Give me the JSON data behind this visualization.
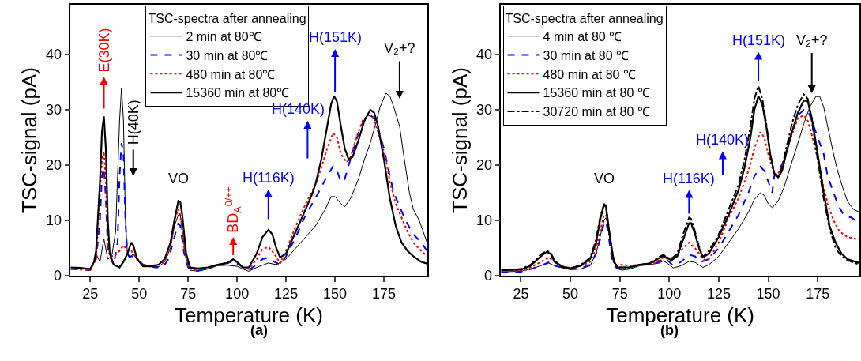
{
  "chart_data": [
    {
      "type": "line",
      "xlabel": "Temperature (K)",
      "ylabel": "TSC-signal (pA)",
      "legend_title": "TSC-spectra after annealing",
      "legend": "top",
      "xlim": [
        15,
        197
      ],
      "ylim": [
        0,
        49
      ],
      "xticks": [
        25,
        50,
        75,
        100,
        125,
        150,
        175
      ],
      "yticks": [
        0,
        10,
        20,
        30,
        40
      ],
      "series": [
        {
          "name": "2 min at 80℃",
          "color": "#000000",
          "line_style": "solid",
          "x": [
            15,
            20,
            25,
            27,
            28,
            30,
            32,
            34,
            36,
            38,
            40,
            41,
            42,
            43,
            44,
            45,
            46,
            47,
            49,
            52,
            55,
            60,
            63,
            66,
            68,
            70,
            71,
            72,
            74,
            76,
            80,
            85,
            90,
            95,
            100,
            103,
            106,
            110,
            116,
            120,
            125,
            130,
            135,
            140,
            145,
            148,
            150,
            153,
            155,
            158,
            162,
            165,
            168,
            170,
            173,
            176,
            178,
            180,
            183,
            185,
            188,
            190,
            193,
            195,
            197
          ],
          "values": [
            1.5,
            1.3,
            1.2,
            2.5,
            4,
            2.5,
            6.7,
            3,
            3.5,
            8,
            28,
            34,
            28,
            10,
            4,
            3.2,
            3.5,
            4,
            2.8,
            2,
            1.8,
            1.6,
            2.5,
            5,
            9,
            11,
            11,
            8,
            3,
            1,
            0.8,
            1.2,
            1.8,
            1.9,
            1.7,
            1.2,
            0.8,
            1.5,
            2.3,
            2,
            3,
            5,
            7,
            9,
            12,
            14.3,
            14.3,
            13,
            12.5,
            14,
            17.5,
            21,
            24,
            26.5,
            30.5,
            33,
            32.5,
            30.5,
            27,
            22,
            15,
            12,
            10,
            8,
            6
          ]
        },
        {
          "name": "30 min at 80℃",
          "color": "#0000ff",
          "line_style": "dashed",
          "x": [
            15,
            25,
            28,
            30,
            31,
            32,
            33,
            34,
            35,
            37,
            39,
            40,
            41,
            42,
            43,
            44,
            45,
            47,
            49,
            52,
            55,
            58,
            62,
            65,
            68,
            70,
            71,
            73,
            75,
            78,
            85,
            90,
            95,
            98,
            100,
            103,
            106,
            110,
            113,
            116,
            119,
            122,
            125,
            130,
            135,
            140,
            143,
            146,
            149,
            151,
            153,
            155,
            157,
            160,
            163,
            166,
            168,
            170,
            172,
            175,
            178,
            180,
            183,
            186,
            190,
            194,
            197
          ],
          "values": [
            1.2,
            1,
            3,
            10,
            18,
            19.5,
            14,
            5,
            3.5,
            2,
            6,
            18,
            24,
            22,
            10,
            4,
            3.5,
            3.5,
            3,
            2,
            1.8,
            1.5,
            1.5,
            3,
            7,
            9.5,
            9,
            4,
            1.5,
            0.8,
            1.3,
            2,
            2.3,
            2.6,
            2.2,
            1.5,
            1,
            2,
            3,
            3.3,
            2.5,
            2,
            3.5,
            7,
            11,
            14,
            16,
            18,
            19.8,
            19,
            17,
            17.5,
            20,
            23.5,
            27,
            28.5,
            29,
            28.5,
            26.5,
            23,
            18,
            15,
            12.5,
            10,
            7.5,
            6,
            4.5
          ]
        },
        {
          "name": "480 min at 80℃",
          "color": "#ff0000",
          "line_style": "dotted",
          "x": [
            15,
            25,
            28,
            30,
            31,
            32,
            33,
            34,
            35,
            37,
            40,
            42,
            44,
            46,
            48,
            52,
            56,
            60,
            63,
            66,
            68,
            70,
            71,
            73,
            75,
            78,
            85,
            90,
            95,
            98,
            100,
            103,
            106,
            110,
            113,
            116,
            119,
            122,
            125,
            130,
            135,
            140,
            143,
            146,
            149,
            151,
            153,
            156,
            158,
            161,
            164,
            167,
            169,
            171,
            173,
            176,
            178,
            181,
            184,
            187,
            190,
            194,
            197
          ],
          "values": [
            1.2,
            1,
            3,
            15,
            21,
            22.5,
            17,
            6,
            3.5,
            3.5,
            4.5,
            5.5,
            4.5,
            4.5,
            3.5,
            2,
            1.8,
            2,
            2.5,
            5,
            10,
            12,
            11,
            5,
            1.5,
            1,
            1.4,
            2,
            2.2,
            2.8,
            2.4,
            1.5,
            1.2,
            3,
            4.8,
            5.2,
            4,
            2.2,
            4.5,
            9,
            13,
            16.5,
            19.5,
            23,
            25.8,
            25,
            22,
            20.5,
            21.5,
            25,
            28,
            29,
            28.8,
            27,
            25,
            21,
            17,
            13,
            10.5,
            8,
            6,
            4.5,
            3.5
          ]
        },
        {
          "name": "15360 min at 80℃",
          "color": "#000000",
          "line_style": "solid",
          "x": [
            15,
            20,
            25,
            27,
            28,
            30,
            31,
            32,
            33,
            34,
            35,
            37,
            40,
            42,
            44,
            46,
            47,
            49,
            52,
            56,
            60,
            63,
            66,
            68,
            70,
            71,
            72,
            74,
            76,
            80,
            85,
            90,
            95,
            98,
            100,
            103,
            106,
            110,
            113,
            116,
            118,
            120,
            122,
            125,
            130,
            135,
            138,
            140,
            143,
            146,
            148,
            149.5,
            151,
            153,
            155,
            157,
            159,
            162,
            165,
            168,
            170,
            172,
            175,
            178,
            181,
            184,
            187,
            190,
            194,
            197
          ],
          "values": [
            1.5,
            1.4,
            1.2,
            2.5,
            4.5,
            17,
            26,
            28.8,
            23,
            10,
            4,
            2,
            1.5,
            2.5,
            4,
            6,
            5.5,
            3,
            1.7,
            1.7,
            2,
            3,
            6,
            10,
            13.5,
            13.3,
            11,
            4,
            1.5,
            1.3,
            1.5,
            2,
            2.3,
            3,
            2.5,
            1.5,
            1.5,
            4,
            7,
            8.3,
            7.5,
            5,
            3.3,
            4,
            8,
            12,
            14.5,
            16.5,
            21,
            27,
            31,
            32.5,
            31.5,
            27,
            23,
            21,
            21.5,
            24.5,
            28,
            30,
            29.5,
            27,
            21,
            14,
            9,
            6,
            4.5,
            3.5,
            2.5,
            2.2
          ]
        }
      ],
      "annotations": [
        "E(30K)",
        "H(40K)",
        "VO",
        "BD$_{A}$$^{0/++}$",
        "H(116K)",
        "H(140K)",
        "H(151K)",
        "V₂+?",
        "(a)"
      ]
    },
    {
      "type": "line",
      "xlabel": "Temperature (K)",
      "ylabel": "TSC-signal (pA)",
      "legend_title": "TSC-spectra after annealing",
      "legend": "top left",
      "xlim": [
        15,
        196
      ],
      "ylim": [
        0,
        49
      ],
      "xticks": [
        25,
        50,
        75,
        100,
        125,
        150,
        175
      ],
      "yticks": [
        0,
        10,
        20,
        30,
        40
      ],
      "series": [
        {
          "name": "4 min at 80 ℃",
          "color": "#000000",
          "line_style": "solid",
          "x": [
            15,
            25,
            30,
            35,
            39,
            42,
            45,
            50,
            55,
            60,
            63,
            65,
            67,
            68,
            69,
            71,
            73,
            76,
            80,
            85,
            90,
            95,
            97,
            100,
            102,
            106,
            110,
            113,
            117,
            120,
            125,
            130,
            135,
            140,
            143,
            146,
            148,
            150,
            152,
            155,
            158,
            161,
            165,
            168,
            171,
            174,
            176,
            178,
            180,
            183,
            185,
            188,
            190,
            193,
            196
          ],
          "values": [
            0.7,
            0.8,
            1.2,
            1.8,
            2.3,
            1.8,
            1.5,
            1.1,
            1.2,
            1.8,
            4,
            7,
            10,
            10.5,
            9,
            4,
            1.5,
            1,
            1.2,
            1.8,
            2,
            2.3,
            2.7,
            2,
            1.4,
            1.8,
            2.6,
            2.4,
            1.5,
            2,
            3.5,
            6,
            8.5,
            11.5,
            13.8,
            15,
            14.5,
            13,
            12.3,
            13.5,
            16,
            19.5,
            24,
            27.5,
            30.5,
            32.4,
            32.4,
            30.5,
            27,
            22,
            19,
            15.5,
            13.5,
            12,
            11.5
          ]
        },
        {
          "name": "30 min at 80 ℃",
          "color": "#0000ff",
          "line_style": "dashed",
          "x": [
            15,
            25,
            30,
            35,
            39,
            42,
            46,
            50,
            55,
            60,
            63,
            65,
            67,
            68,
            69,
            71,
            73,
            76,
            80,
            85,
            90,
            95,
            97,
            100,
            102,
            106,
            110,
            113,
            116,
            120,
            125,
            130,
            135,
            140,
            143,
            146,
            148,
            150,
            152,
            153,
            155,
            158,
            161,
            165,
            168,
            170,
            172,
            175,
            178,
            180,
            183,
            185,
            188,
            192,
            196
          ],
          "values": [
            0.6,
            0.7,
            1.2,
            1.8,
            2.4,
            1.8,
            1.5,
            1.2,
            1.3,
            2,
            4,
            6.5,
            9.5,
            9.8,
            8,
            3,
            1.5,
            1,
            1.5,
            2,
            2,
            2.5,
            3.2,
            2.5,
            1.8,
            2.5,
            3.8,
            3.5,
            2.5,
            3,
            5,
            8,
            11,
            15,
            18,
            19.7,
            19,
            17,
            15,
            18,
            18.5,
            21,
            25,
            29,
            30,
            30,
            28,
            25,
            22,
            18,
            15,
            13,
            11,
            10.5,
            9.5
          ]
        },
        {
          "name": "480 min at 80 ℃",
          "color": "#ff0000",
          "line_style": "dotted",
          "x": [
            15,
            25,
            30,
            35,
            39,
            42,
            46,
            50,
            55,
            60,
            63,
            65,
            67,
            68,
            69,
            71,
            73,
            76,
            80,
            85,
            90,
            95,
            97,
            100,
            103,
            107,
            110,
            113,
            116,
            118,
            120,
            125,
            130,
            135,
            140,
            143,
            146,
            148,
            150,
            152,
            154,
            156,
            158,
            161,
            165,
            168,
            170,
            172,
            175,
            178,
            180,
            183,
            186,
            190,
            196
          ],
          "values": [
            0.8,
            0.9,
            1.5,
            2.5,
            3.3,
            2.5,
            1.7,
            1.4,
            1.7,
            2.5,
            5,
            8,
            11,
            11,
            9.5,
            4,
            1.8,
            2,
            1.8,
            2,
            2,
            2.8,
            3.3,
            3,
            3.5,
            5,
            6,
            5,
            3.5,
            2.8,
            3,
            6,
            10.5,
            14,
            19,
            23,
            26,
            25,
            22,
            19.5,
            18,
            19,
            21,
            24.5,
            28.5,
            29,
            28,
            25.5,
            21,
            16,
            13,
            10,
            8,
            7,
            6.5
          ]
        },
        {
          "name": "15360 min at 80 ℃",
          "color": "#000000",
          "line_style": "solid",
          "x": [
            15,
            25,
            30,
            35,
            38,
            40,
            42,
            46,
            50,
            55,
            60,
            63,
            65,
            67,
            68,
            70,
            72,
            74,
            80,
            85,
            90,
            95,
            97,
            99,
            101,
            104,
            107,
            110,
            111,
            113,
            115,
            117,
            120,
            125,
            130,
            135,
            138,
            141,
            143,
            145,
            147,
            149,
            151,
            153,
            155,
            157,
            159,
            162,
            165,
            168,
            170,
            172,
            175,
            178,
            181,
            184,
            187,
            190,
            196
          ],
          "values": [
            1,
            1.1,
            1.8,
            3.5,
            4.3,
            4,
            2.5,
            1.6,
            1.3,
            1.8,
            3,
            6,
            10,
            13,
            12.5,
            7,
            2.5,
            1.5,
            1.5,
            2,
            2.2,
            3.2,
            3.6,
            3.2,
            2.8,
            3.5,
            6.5,
            9.5,
            9.5,
            7.5,
            5,
            3.3,
            4,
            7,
            11,
            15.5,
            19.5,
            25,
            30,
            32.5,
            31,
            27,
            22,
            18.5,
            17.8,
            19,
            22,
            26,
            29.5,
            31.7,
            31.5,
            28.5,
            22,
            15,
            9,
            6,
            4,
            3,
            2.3
          ]
        },
        {
          "name": "30720 min at 80 ℃",
          "color": "#000000",
          "line_style": "dashdot",
          "x": [
            15,
            25,
            30,
            35,
            38,
            40,
            42,
            46,
            50,
            55,
            60,
            63,
            65,
            67,
            68,
            70,
            72,
            74,
            80,
            85,
            90,
            95,
            97,
            99,
            101,
            104,
            107,
            110,
            111,
            113,
            115,
            117,
            120,
            125,
            130,
            135,
            138,
            141,
            143,
            145,
            147,
            149,
            151,
            153,
            155,
            157,
            159,
            162,
            165,
            168,
            170,
            172,
            175,
            178,
            181,
            184,
            187,
            190,
            196
          ],
          "values": [
            1,
            1.2,
            2,
            3.8,
            4.5,
            4.2,
            2.7,
            1.6,
            1.3,
            1.9,
            3.2,
            6.5,
            10.5,
            12.8,
            12.5,
            7,
            2.5,
            1.5,
            1.5,
            2,
            2.2,
            3.4,
            3.8,
            3.3,
            3,
            4,
            7.5,
            10.5,
            10.3,
            8,
            5.3,
            3.4,
            4.5,
            7.5,
            12,
            16.5,
            21,
            27,
            32,
            34.3,
            32,
            27.5,
            22,
            18.5,
            17.8,
            19.5,
            23,
            27.5,
            31,
            32.8,
            32,
            28,
            21,
            14,
            8.5,
            5,
            3.5,
            2.8,
            2
          ]
        }
      ],
      "annotations": [
        "VO",
        "H(116K)",
        "H(140K)",
        "H(151K)",
        "V₂+?",
        "(b)"
      ]
    }
  ]
}
